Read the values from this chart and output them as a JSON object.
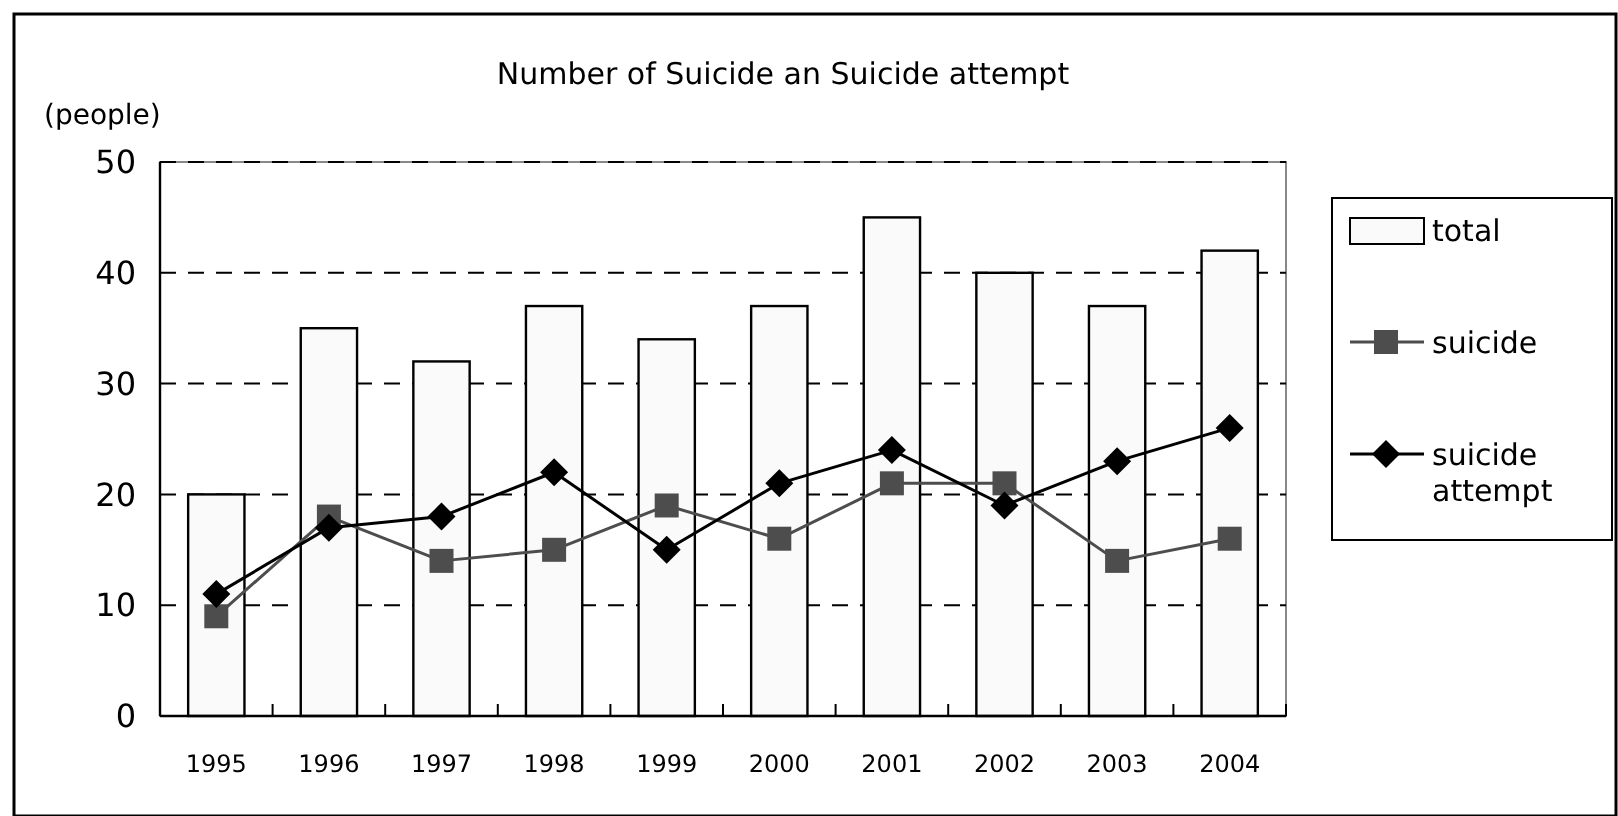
{
  "chart_data": {
    "type": "bar",
    "title": "Number of Suicide an Suicide attempt",
    "ylabel": "(people)",
    "categories": [
      "1995",
      "1996",
      "1997",
      "1998",
      "1999",
      "2000",
      "2001",
      "2002",
      "2003",
      "2004"
    ],
    "series": [
      {
        "name": "total",
        "color": "#fafafa",
        "values": [
          20,
          35,
          32,
          37,
          34,
          37,
          45,
          40,
          37,
          42
        ]
      },
      {
        "name": "suicide",
        "type": "line",
        "color": "#4d4d4d",
        "marker": "square",
        "values": [
          9,
          18,
          14,
          15,
          19,
          16,
          21,
          21,
          14,
          16
        ]
      },
      {
        "name": "suicide attempt",
        "type": "line",
        "color": "#000000",
        "marker": "diamond",
        "values": [
          11,
          17,
          18,
          22,
          15,
          21,
          24,
          19,
          23,
          26
        ]
      }
    ],
    "ylim": [
      0,
      50
    ],
    "yticks": [
      0,
      10,
      20,
      30,
      40,
      50
    ],
    "grid": "y",
    "legend": "right"
  }
}
